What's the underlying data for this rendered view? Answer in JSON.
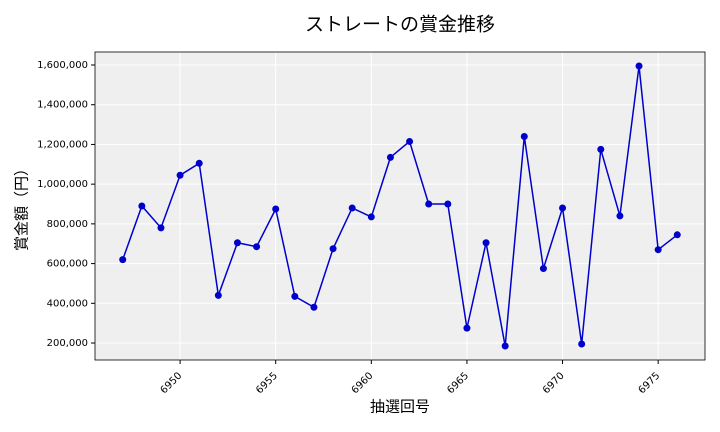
{
  "chart_data": {
    "type": "line",
    "title": "ストレートの賞金推移",
    "x_label": "抽選回号",
    "y_label": "賞金額（円）",
    "x": [
      6947,
      6948,
      6949,
      6950,
      6951,
      6952,
      6953,
      6954,
      6955,
      6956,
      6957,
      6958,
      6959,
      6960,
      6961,
      6962,
      6963,
      6964,
      6965,
      6966,
      6967,
      6968,
      6969,
      6970,
      6971,
      6972,
      6973,
      6974,
      6975,
      6976
    ],
    "values": [
      620000,
      890000,
      780000,
      1045000,
      1105000,
      440000,
      705000,
      685000,
      875000,
      435000,
      380000,
      675000,
      880000,
      835000,
      1135000,
      1215000,
      900000,
      900000,
      275000,
      705000,
      185000,
      1240000,
      575000,
      880000,
      195000,
      1175000,
      840000,
      1595000,
      670000,
      745000
    ],
    "color": "#0000cd",
    "xlim": [
      6945.55,
      6977.45
    ],
    "xticks": [
      6950,
      6955,
      6960,
      6965,
      6970,
      6975
    ],
    "ylim": [
      114500,
      1665500
    ],
    "yticks": [
      {
        "value": 200000,
        "label": "200,000"
      },
      {
        "value": 400000,
        "label": "400,000"
      },
      {
        "value": 600000,
        "label": "600,000"
      },
      {
        "value": 800000,
        "label": "800,000"
      },
      {
        "value": 1000000,
        "label": "1,000,000"
      },
      {
        "value": 1200000,
        "label": "1,200,000"
      },
      {
        "value": 1400000,
        "label": "1,400,000"
      },
      {
        "value": 1600000,
        "label": "1,600,000"
      }
    ],
    "grid": true
  }
}
